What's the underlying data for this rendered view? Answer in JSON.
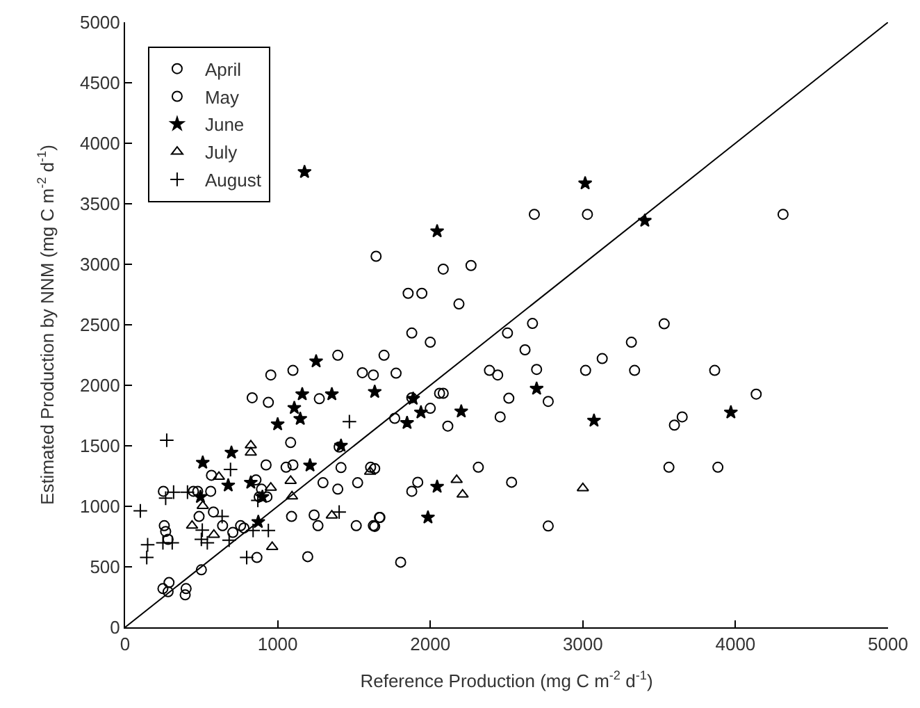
{
  "chart_data": {
    "type": "scatter",
    "xlabel": "Reference Production (mg C m$^{-2}$ d$^{-1}$)",
    "ylabel": "Estimated Production by NNM (mg C m$^{-2}$ d$^{-1}$)",
    "xlim": [
      0,
      5000
    ],
    "xticks": [
      0,
      1000,
      2000,
      3000,
      4000,
      5000
    ],
    "ylim": [
      0,
      5000
    ],
    "yticks": [
      0,
      500,
      1000,
      1500,
      2000,
      2500,
      3000,
      3500,
      4000,
      4500,
      5000
    ],
    "legend": "top left",
    "series": [
      {
        "name": "April",
        "color": "#000000",
        "marker": "circle",
        "x": [
          248,
          288,
          282,
          400,
          394,
          500
        ],
        "values": [
          320,
          370,
          294,
          320,
          268,
          475
        ]
      },
      {
        "name": "May",
        "color": "#000000",
        "marker": "circle",
        "x": [
          251,
          257,
          266,
          282,
          448,
          476,
          561,
          566,
          579,
          639,
          706,
          757,
          779,
          833,
          939,
          955,
          1100,
          1394,
          1555,
          1627,
          1697,
          1767,
          1273,
          1085,
          924,
          1055,
          1100,
          858,
          894,
          879,
          930,
          1297,
          1394,
          1415,
          1524,
          1609,
          1091,
          1239,
          1264,
          1515,
          1627,
          1670,
          864,
          1197,
          1403,
          1645,
          2085,
          2267,
          1855,
          1945,
          2188,
          2682,
          3030,
          1879,
          2000,
          1776,
          2506,
          2670,
          2621,
          2388,
          2442,
          2697,
          3018,
          3127,
          3318,
          3339,
          1879,
          2061,
          2085,
          2000,
          2115,
          2515,
          2773,
          2458,
          2315,
          1636,
          1918,
          1879,
          2533,
          1667,
          1636,
          2773,
          1806,
          4312,
          3533,
          3864,
          4136,
          3651,
          3600,
          3564,
          3885,
          485
        ],
        "values": [
          1124,
          840,
          792,
          727,
          1124,
          1124,
          1124,
          1256,
          953,
          840,
          784,
          840,
          821,
          1897,
          1859,
          2085,
          2123,
          2248,
          2104,
          2085,
          2248,
          1727,
          1889,
          1527,
          1342,
          1323,
          1342,
          1218,
          1142,
          1078,
          1078,
          1195,
          1142,
          1320,
          1195,
          1323,
          916,
          928,
          840,
          840,
          840,
          908,
          577,
          584,
          1490,
          3066,
          2960,
          2990,
          2760,
          2760,
          2672,
          3413,
          3413,
          2432,
          2356,
          2100,
          2432,
          2511,
          2293,
          2123,
          2085,
          2131,
          2123,
          2221,
          2356,
          2123,
          1897,
          1934,
          1934,
          1810,
          1663,
          1893,
          1867,
          1739,
          1323,
          1312,
          1199,
          1124,
          1199,
          908,
          834,
          837,
          538,
          3413,
          2508,
          2123,
          1927,
          1739,
          1671,
          1323,
          1323,
          916
        ]
      },
      {
        "name": "June",
        "color": "#000000",
        "marker": "star",
        "x": [
          1252,
          1161,
          1355,
          1636,
          1109,
          1148,
          1000,
          697,
          509,
          676,
          824,
          900,
          494,
          1212,
          1415,
          873,
          3015,
          2045,
          3406,
          1888,
          1939,
          1848,
          2203,
          2697,
          3073,
          2045,
          1985,
          3970,
          1176
        ],
        "values": [
          2198,
          1926,
          1926,
          1946,
          1813,
          1723,
          1678,
          1444,
          1361,
          1173,
          1196,
          1078,
          1078,
          1338,
          1501,
          871,
          3669,
          3273,
          3360,
          1889,
          1776,
          1689,
          1784,
          1972,
          1708,
          1162,
          908,
          1776,
          3763
        ]
      },
      {
        "name": "July",
        "color": "#000000",
        "marker": "triangle",
        "x": [
          824,
          824,
          615,
          955,
          1085,
          1094,
          509,
          439,
          582,
          964,
          1355,
          1606,
          2173,
          2212,
          3000
        ],
        "values": [
          1504,
          1444,
          1244,
          1154,
          1210,
          1082,
          1003,
          840,
          765,
          664,
          924,
          1286,
          1218,
          1097,
          1150
        ]
      },
      {
        "name": "August",
        "color": "#000000",
        "marker": "cross",
        "x": [
          100,
          273,
          266,
          318,
          409,
          148,
          142,
          248,
          309,
          500,
          539,
          682,
          691,
          797,
          870,
          939,
          839,
          506,
          1470,
          1403,
          636
        ],
        "values": [
          962,
          1546,
          1067,
          1117,
          1117,
          682,
          577,
          698,
          698,
          727,
          698,
          720,
          1304,
          577,
          1049,
          800,
          800,
          803,
          1700,
          953,
          916
        ]
      },
      {
        "type": "line",
        "color": "#000000",
        "marker": "none",
        "line_style": "solid",
        "x": [
          0,
          5000
        ],
        "values": [
          0,
          5000
        ]
      }
    ]
  }
}
